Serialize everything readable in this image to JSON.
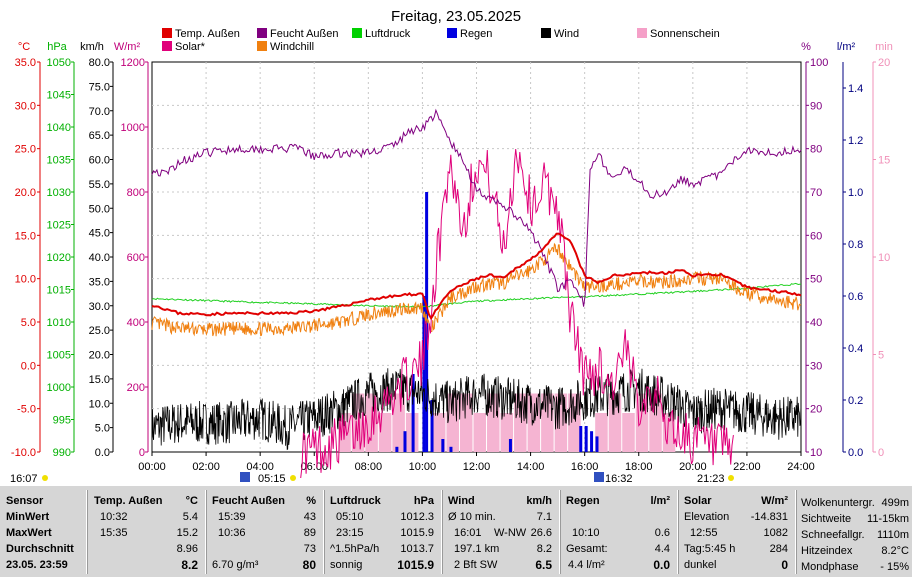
{
  "title": "Freitag, 23.05.2025",
  "legend": [
    {
      "label": "Temp. Außen",
      "color": "#e00000"
    },
    {
      "label": "Feucht Außen",
      "color": "#800080"
    },
    {
      "label": "Luftdruck",
      "color": "#00d000"
    },
    {
      "label": "Regen",
      "color": "#0000e0"
    },
    {
      "label": "Wind",
      "color": "#000000"
    },
    {
      "label": "Sonnenschein",
      "color": "#f5a0c8"
    },
    {
      "label": "Solar*",
      "color": "#e0007a"
    },
    {
      "label": "Windchill",
      "color": "#f08010"
    }
  ],
  "axes": {
    "temp": {
      "unit": "°C",
      "color": "#e00000",
      "ticks": [
        "35.0",
        "30.0",
        "25.0",
        "20.0",
        "15.0",
        "10.0",
        "5.0",
        "0.0",
        "-5.0",
        "-10.0"
      ]
    },
    "pressure": {
      "unit": "hPa",
      "color": "#00b000",
      "ticks": [
        "1050",
        "1045",
        "1040",
        "1035",
        "1030",
        "1025",
        "1020",
        "1015",
        "1010",
        "1005",
        "1000",
        "995",
        "990"
      ]
    },
    "wind": {
      "unit": "km/h",
      "color": "#000000",
      "ticks": [
        "80.0",
        "75.0",
        "70.0",
        "65.0",
        "60.0",
        "55.0",
        "50.0",
        "45.0",
        "40.0",
        "35.0",
        "30.0",
        "25.0",
        "20.0",
        "15.0",
        "10.0",
        "5.0",
        "0.0"
      ]
    },
    "solar": {
      "unit": "W/m²",
      "color": "#c0007a",
      "ticks": [
        "1200",
        "1000",
        "800",
        "600",
        "400",
        "200",
        "0"
      ]
    },
    "humidity": {
      "unit": "%",
      "color": "#800080",
      "ticks": [
        "100",
        "90",
        "80",
        "70",
        "60",
        "50",
        "40",
        "30",
        "20",
        "10"
      ]
    },
    "rain": {
      "unit": "l/m²",
      "color": "#000080",
      "ticks": [
        "1.4",
        "1.2",
        "1.0",
        "0.8",
        "0.6",
        "0.4",
        "0.2",
        "0.0"
      ]
    },
    "sun": {
      "unit": "min",
      "color": "#f090b8",
      "ticks": [
        "20",
        "15",
        "10",
        "5",
        "0"
      ]
    },
    "time": {
      "ticks": [
        "00:00",
        "02:00",
        "04:00",
        "06:00",
        "08:00",
        "10:00",
        "12:00",
        "14:00",
        "16:00",
        "18:00",
        "20:00",
        "22:00",
        "24:00"
      ]
    }
  },
  "markers": {
    "moon_left": "16:07",
    "sunrise": "05:15",
    "sunset": "16:32",
    "moon_right": "21:23"
  },
  "chart_data": {
    "type": "line",
    "x_unit": "hour",
    "xlim": [
      0,
      24
    ],
    "series": [
      {
        "name": "Temp. Außen",
        "unit": "°C",
        "x": [
          0,
          1,
          2,
          3,
          4,
          5,
          6,
          7,
          8,
          9,
          10,
          10.3,
          11,
          11.5,
          12,
          12.5,
          13,
          13.5,
          14,
          14.5,
          15,
          15.5,
          16,
          16.5,
          17,
          17.5,
          18,
          18.5,
          19,
          19.5,
          20,
          21,
          22,
          23,
          24
        ],
        "values": [
          7.0,
          6.0,
          5.9,
          6.0,
          6.0,
          6.0,
          6.3,
          6.8,
          7.6,
          8.0,
          8.3,
          5.4,
          8.5,
          9.3,
          10.0,
          10.4,
          10.0,
          11.3,
          12.2,
          13.6,
          15.2,
          14.2,
          10.3,
          9.5,
          10.3,
          10.5,
          10.7,
          10.7,
          10.6,
          11.0,
          10.4,
          10.5,
          9.0,
          8.6,
          8.2
        ]
      },
      {
        "name": "Feucht Außen",
        "unit": "%",
        "x": [
          0,
          0.5,
          1,
          2,
          3,
          4,
          5,
          5.5,
          6,
          7,
          8,
          9,
          9.5,
          10,
          10.5,
          11,
          11.5,
          12,
          12.5,
          13,
          13.5,
          14,
          14.5,
          15,
          15.5,
          16,
          16.2,
          16.5,
          17,
          17.5,
          18,
          18.5,
          19,
          19.5,
          20,
          21,
          22,
          23,
          24
        ],
        "values": [
          75,
          74,
          77,
          79,
          80,
          80,
          80,
          80,
          78,
          79,
          79,
          81,
          84,
          85,
          88,
          82,
          77,
          71,
          68,
          67,
          64,
          61,
          55,
          48,
          49,
          44,
          76,
          79,
          73,
          75,
          73,
          69,
          70,
          73,
          72,
          74,
          80,
          79,
          80
        ]
      },
      {
        "name": "Luftdruck",
        "unit": "hPa",
        "x": [
          0,
          2,
          4,
          6,
          8,
          10,
          11,
          12,
          14,
          16,
          18,
          20,
          22,
          24
        ],
        "values": [
          1013.6,
          1013.3,
          1013.0,
          1012.8,
          1012.5,
          1012.3,
          1012.8,
          1013.2,
          1013.6,
          1013.9,
          1014.3,
          1014.7,
          1015.2,
          1015.9
        ]
      },
      {
        "name": "Wind",
        "unit": "km/h",
        "x": [
          0,
          1,
          2,
          3,
          4,
          5,
          6,
          7,
          8,
          9,
          10,
          11,
          12,
          13,
          14,
          15,
          16,
          17,
          18,
          19,
          20,
          21,
          22,
          23,
          24
        ],
        "values": [
          5,
          6,
          6,
          6,
          7,
          5,
          7,
          9,
          12,
          13,
          12,
          10,
          12,
          11,
          10,
          9,
          11,
          12,
          13,
          11,
          8,
          9,
          8,
          7,
          7
        ]
      },
      {
        "name": "Windchill",
        "unit": "°C",
        "x": [
          0,
          1,
          2,
          3,
          4,
          5,
          6,
          7,
          8,
          9,
          10,
          10.3,
          11,
          12,
          13,
          14,
          15,
          16,
          17,
          18,
          19,
          20,
          21,
          22,
          23,
          24
        ],
        "values": [
          4.9,
          4.3,
          4.1,
          4.2,
          4.2,
          4.3,
          4.6,
          5.0,
          5.9,
          6.4,
          6.7,
          4.0,
          7.7,
          9.2,
          9.5,
          11.0,
          13.5,
          9.0,
          9.3,
          9.7,
          9.6,
          10.0,
          10.0,
          8.3,
          7.5,
          7.1
        ]
      },
      {
        "name": "Solar*",
        "unit": "W/m²",
        "x": [
          5.5,
          6.5,
          7.5,
          8.5,
          9.5,
          10,
          10.5,
          11,
          11.5,
          12,
          12.5,
          13,
          13.5,
          14,
          14.5,
          15,
          15.5,
          16,
          16.5,
          17,
          17.5,
          18,
          18.5,
          19,
          19.5,
          20,
          20.5,
          21,
          21.5
        ],
        "values": [
          0,
          20,
          60,
          140,
          230,
          270,
          560,
          900,
          690,
          900,
          840,
          620,
          940,
          760,
          820,
          760,
          410,
          230,
          260,
          210,
          300,
          160,
          200,
          90,
          60,
          40,
          20,
          5,
          0
        ]
      },
      {
        "name": "Regen",
        "unit": "l/m²",
        "x": [
          9.0,
          9.3,
          9.6,
          10.0,
          10.1,
          10.3,
          10.7,
          11.0,
          13.2,
          15.8,
          16.0,
          16.2,
          16.4
        ],
        "values": [
          0.02,
          0.08,
          0.3,
          0.6,
          1.0,
          0.2,
          0.05,
          0.02,
          0.05,
          0.1,
          0.1,
          0.08,
          0.06
        ]
      },
      {
        "name": "Sonnenschein",
        "unit": "min",
        "x": [
          7,
          7.5,
          8,
          8.5,
          9,
          9.5,
          10.5,
          11,
          11.5,
          12,
          12.5,
          13,
          13.5,
          14,
          14.5,
          15,
          15.5,
          16.5,
          17,
          17.5,
          18,
          18.5,
          19
        ],
        "values": [
          2,
          3,
          3,
          2,
          3,
          2,
          2,
          3,
          3,
          2,
          3,
          2,
          3,
          3,
          3,
          3,
          3,
          2,
          3,
          2,
          3,
          3,
          2
        ]
      }
    ]
  },
  "stats": {
    "sensor": {
      "header": "Sensor",
      "min": "MinWert",
      "max": "MaxWert",
      "avg": "Durchschnitt",
      "date": "23.05. 23:59"
    },
    "temp": {
      "header": "Temp. Außen",
      "unit": "°C",
      "min_t": "10:32",
      "min_v": "5.4",
      "max_t": "15:35",
      "max_v": "15.2",
      "avg_v": "8.96",
      "cur_v": "8.2"
    },
    "humid": {
      "header": "Feucht Außen",
      "unit": "%",
      "min_t": "15:39",
      "min_v": "43",
      "max_t": "10:36",
      "max_v": "89",
      "avg_v": "73",
      "cur_l": "6.70 g/m³",
      "cur_v": "80"
    },
    "press": {
      "header": "Luftdruck",
      "unit": "hPa",
      "min_t": "05:10",
      "min_v": "1012.3",
      "max_t": "23:15",
      "max_v": "1015.9",
      "avg_l": "^1.5hPa/h",
      "avg_v": "1013.7",
      "cur_l": "sonnig",
      "cur_v": "1015.9"
    },
    "wind": {
      "header": "Wind",
      "unit": "km/h",
      "r1_l": "Ø 10 min.",
      "r1_v": "7.1",
      "r2_t": "16:01",
      "r2_m": "W-NW",
      "r2_v": "26.6",
      "r3_l": "197.1 km",
      "r3_v": "8.2",
      "r4_l": "2 Bft SW",
      "r4_v": "6.5"
    },
    "rain": {
      "header": "Regen",
      "unit": "l/m²",
      "r2_t": "10:10",
      "r2_v": "0.6",
      "r3_l": "Gesamt:",
      "r3_v": "4.4",
      "r4_l": "4.4 l/m²",
      "r4_v": "0.0"
    },
    "solar": {
      "header": "Solar",
      "unit": "W/m²",
      "r1_l": "Elevation",
      "r1_v": "-14.831",
      "r2_t": "12:55",
      "r2_v": "1082",
      "r3_l": "Tag:5:45 h",
      "r3_v": "284",
      "r4_l": "dunkel",
      "r4_v": "0"
    },
    "extra": {
      "r0_l": "Wolkenuntergr.",
      "r0_v": "499m",
      "r1_l": "Sichtweite",
      "r1_v": "11-15km",
      "r2_l": "Schneefallgr.",
      "r2_v": "1110m",
      "r3_l": "Hitzeindex",
      "r3_v": "8.2°C",
      "r4_l": "Mondphase",
      "r4_v": "- 15%"
    }
  }
}
